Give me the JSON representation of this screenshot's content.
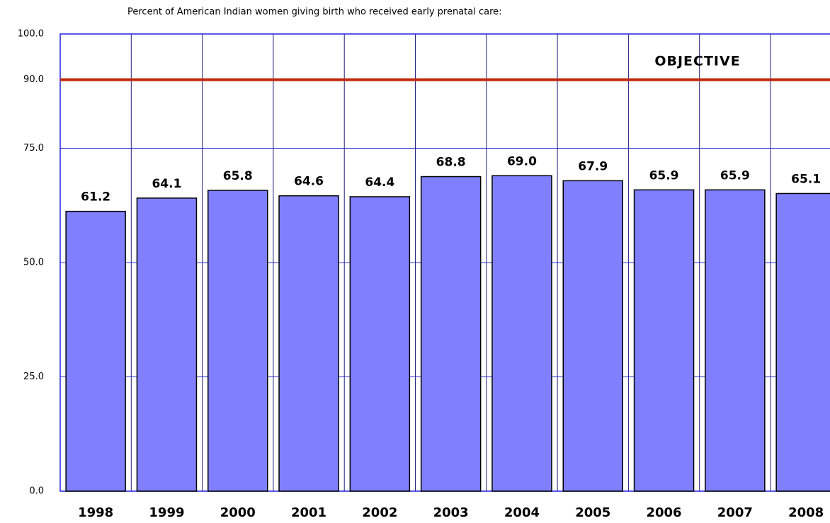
{
  "chart_data": {
    "type": "bar",
    "title": "Percent of American Indian women giving birth who received early prenatal care:",
    "categories": [
      "1998",
      "1999",
      "2000",
      "2001",
      "2002",
      "2003",
      "2004",
      "2005",
      "2006",
      "2007",
      "2008"
    ],
    "values": [
      61.2,
      64.1,
      65.8,
      64.6,
      64.4,
      68.8,
      69.0,
      67.9,
      65.9,
      65.9,
      65.1
    ],
    "value_labels": [
      "61.2",
      "64.1",
      "65.8",
      "64.6",
      "64.4",
      "68.8",
      "69.0",
      "67.9",
      "65.9",
      "65.9",
      "65.1"
    ],
    "color": "#8080ff",
    "ylim": [
      0,
      100
    ],
    "yticks": [
      {
        "value": 0,
        "label": "0.0"
      },
      {
        "value": 25,
        "label": "25.0"
      },
      {
        "value": 50,
        "label": "50.0"
      },
      {
        "value": 75,
        "label": "75.0"
      },
      {
        "value": 90,
        "label": "90.0"
      },
      {
        "value": 100,
        "label": "100.0"
      }
    ],
    "grid": true,
    "objective": {
      "label": "OBJECTIVE",
      "value": 90,
      "color": "#c0280a"
    }
  }
}
